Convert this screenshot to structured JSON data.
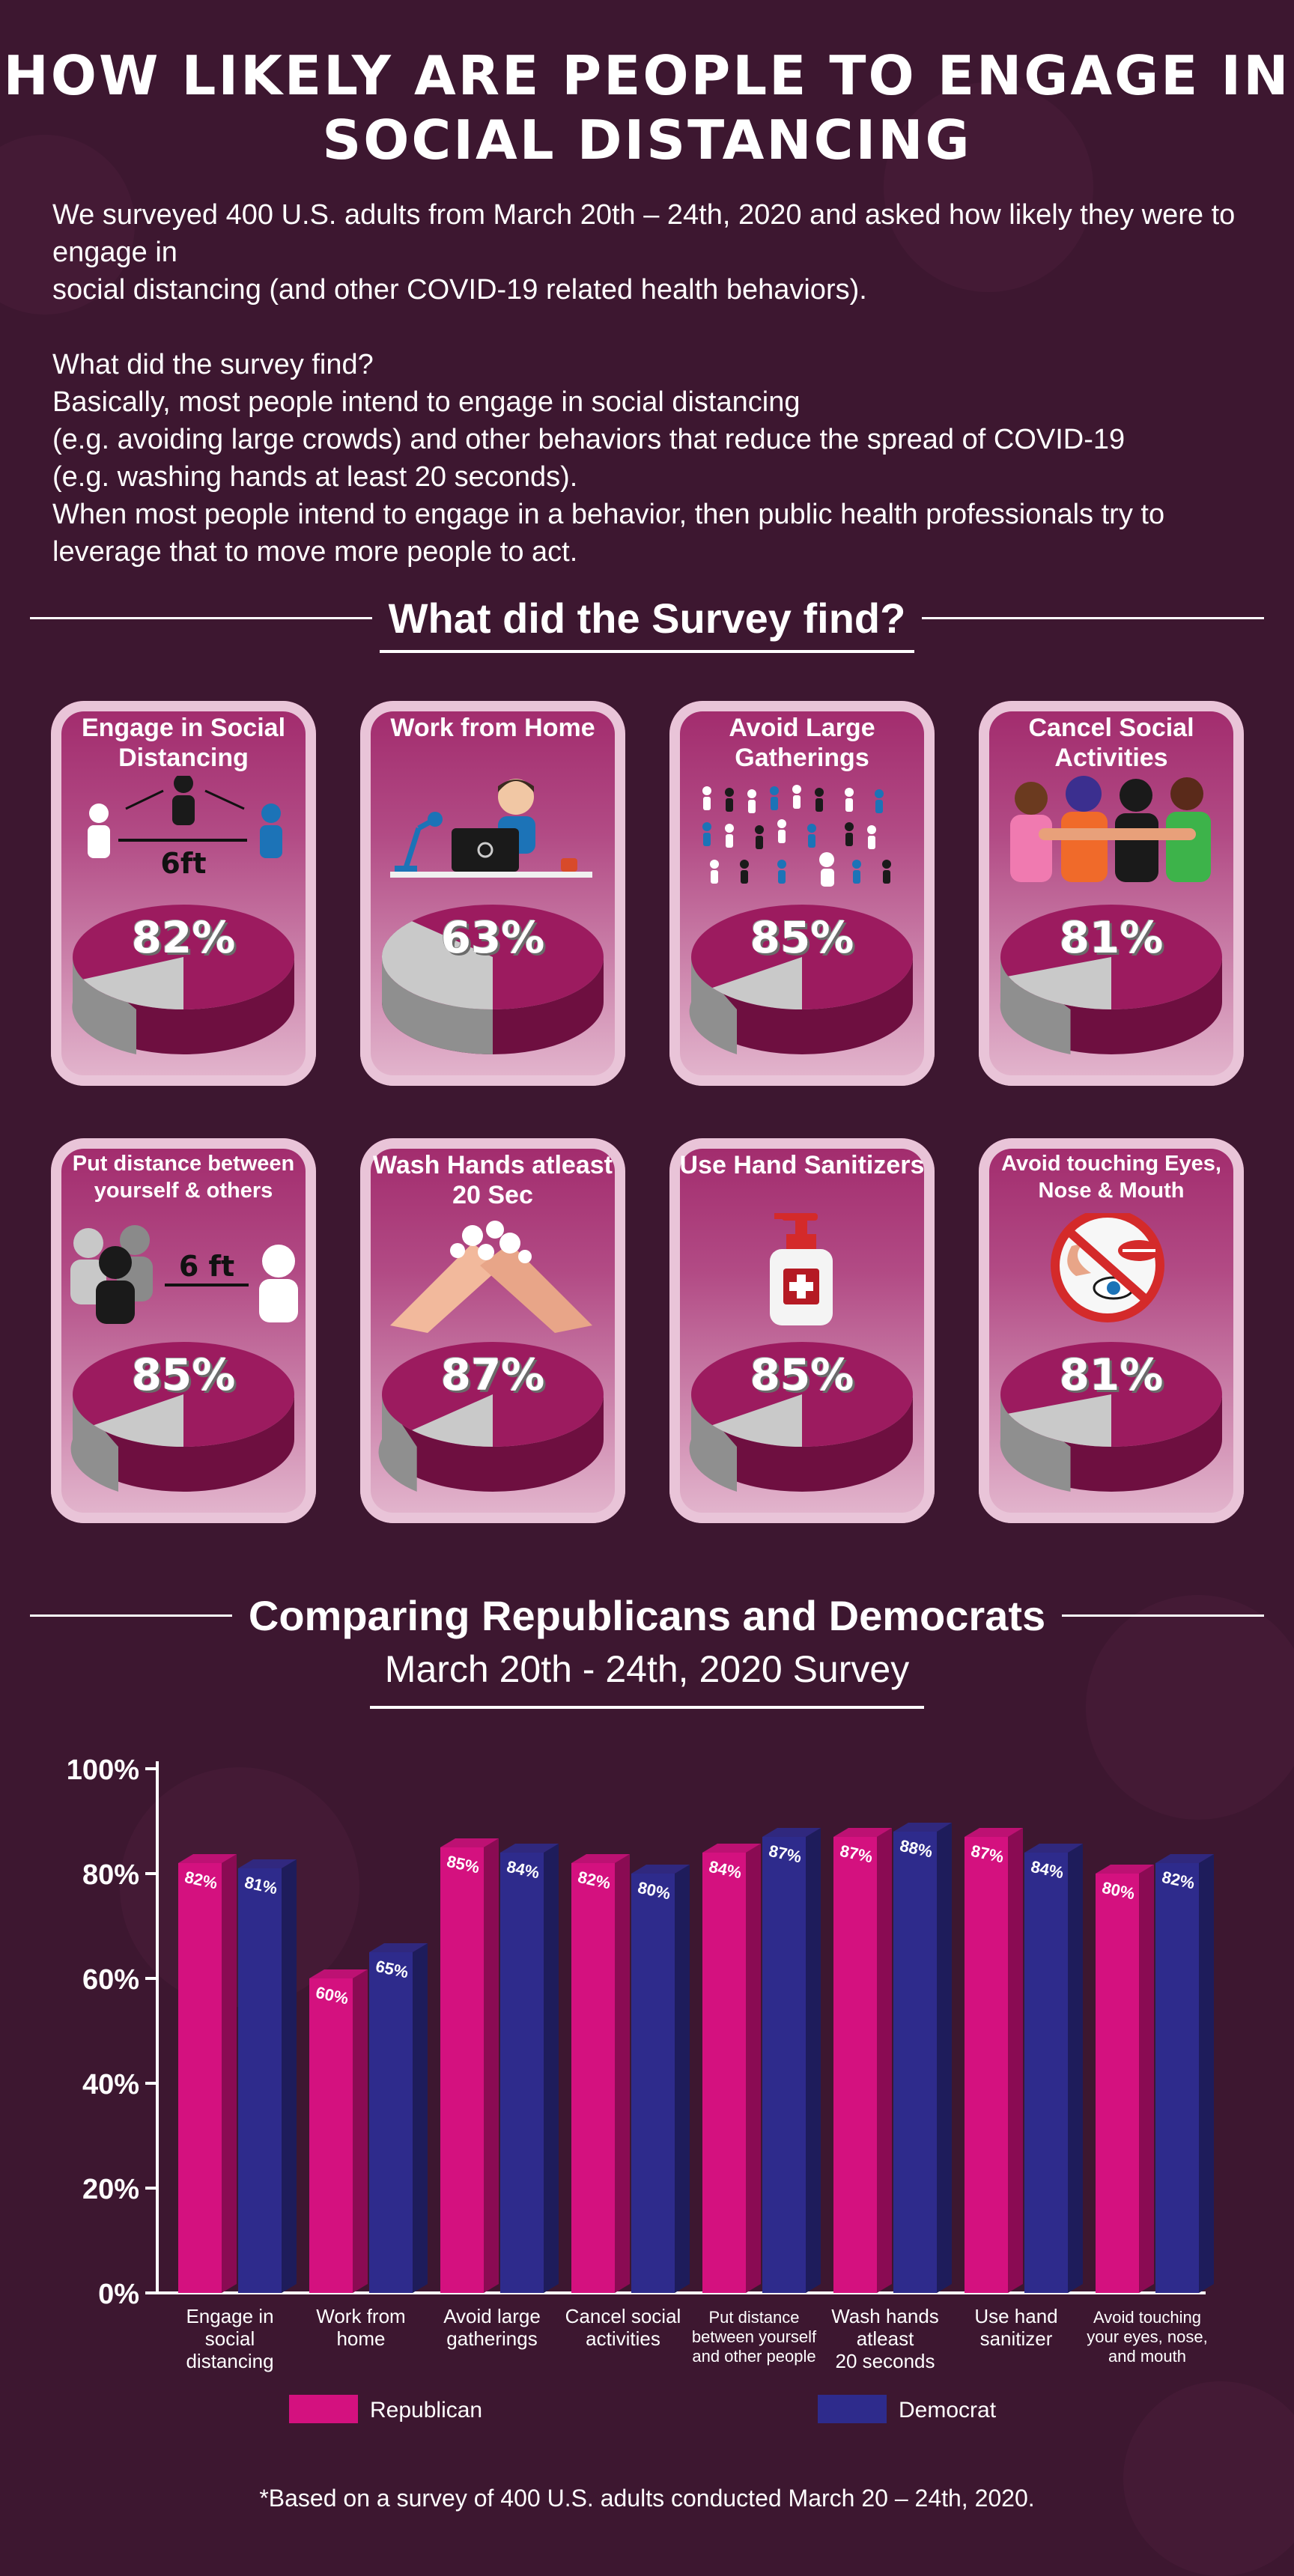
{
  "title": "HOW LIKELY ARE PEOPLE TO ENGAGE IN SOCIAL DISTANCING",
  "intro": {
    "p1": "We surveyed 400 U.S. adults from March 20th – 24th, 2020 and asked how likely they were to engage in",
    "p2": "social distancing (and other COVID-19 related health behaviors).",
    "p3": "What did the survey find?",
    "p4": "Basically, most people intend to engage in social distancing",
    "p5": "(e.g. avoiding large crowds) and other behaviors that reduce the spread of COVID-19",
    "p6": "(e.g. washing hands at least 20 seconds).",
    "p7": "When most people intend to engage in a behavior, then public health professionals try to leverage that to move more people to act."
  },
  "section1": {
    "heading": "What did the Survey find?"
  },
  "cards": [
    {
      "label": "Engage in Social Distancing",
      "value": 82,
      "pct": "82%",
      "icon": "distancing-icon",
      "ill_text": "6ft"
    },
    {
      "label": "Work from Home",
      "value": 63,
      "pct": "63%",
      "icon": "work-from-home-icon"
    },
    {
      "label": "Avoid Large Gatherings",
      "value": 85,
      "pct": "85%",
      "icon": "crowd-icon"
    },
    {
      "label": "Cancel Social Activities",
      "value": 81,
      "pct": "81%",
      "icon": "friends-group-icon"
    },
    {
      "label": "Put distance between yourself & others",
      "value": 85,
      "pct": "85%",
      "icon": "people-distance-icon",
      "ill_text": "6 ft"
    },
    {
      "label": "Wash Hands atleast 20 Sec",
      "value": 87,
      "pct": "87%",
      "icon": "washing-hands-icon"
    },
    {
      "label": "Use Hand Sanitizers",
      "value": 85,
      "pct": "85%",
      "icon": "sanitizer-bottle-icon"
    },
    {
      "label": "Avoid touching Eyes, Nose & Mouth",
      "value": 81,
      "pct": "81%",
      "icon": "no-touch-face-icon"
    }
  ],
  "section2": {
    "heading": "Comparing Republicans and Democrats",
    "subtitle": "March 20th - 24th, 2020 Survey"
  },
  "chart_data": {
    "type": "bar",
    "title": "Comparing Republicans and Democrats",
    "subtitle": "March 20th - 24th, 2020 Survey",
    "categories": [
      [
        "Engage in",
        "social",
        "distancing"
      ],
      [
        "Work from",
        "home"
      ],
      [
        "Avoid large",
        "gatherings"
      ],
      [
        "Cancel social",
        "activities"
      ],
      [
        "Put distance",
        "between yourself",
        "and other people"
      ],
      [
        "Wash hands",
        "atleast",
        "20 seconds"
      ],
      [
        "Use hand",
        "sanitizer"
      ],
      [
        "Avoid touching",
        "your eyes, nose,",
        "and mouth"
      ]
    ],
    "series": [
      {
        "name": "Republican",
        "color": "#d4117f",
        "values": [
          82,
          60,
          85,
          82,
          84,
          87,
          87,
          80
        ]
      },
      {
        "name": "Democrat",
        "color": "#2e2b8c",
        "values": [
          81,
          65,
          84,
          80,
          87,
          88,
          84,
          82
        ]
      }
    ],
    "yticks": [
      "0%",
      "20%",
      "40%",
      "60%",
      "80%",
      "100%"
    ],
    "ylim": [
      0,
      100
    ],
    "legend_position": "bottom"
  },
  "colors": {
    "background": "#3d1730",
    "accent": "#a12a6c",
    "pie_main": "#9c1b5f",
    "pie_rest": "#c9c9c9"
  },
  "footnote": "*Based on a survey of 400 U.S. adults conducted March 20 – 24th, 2020."
}
